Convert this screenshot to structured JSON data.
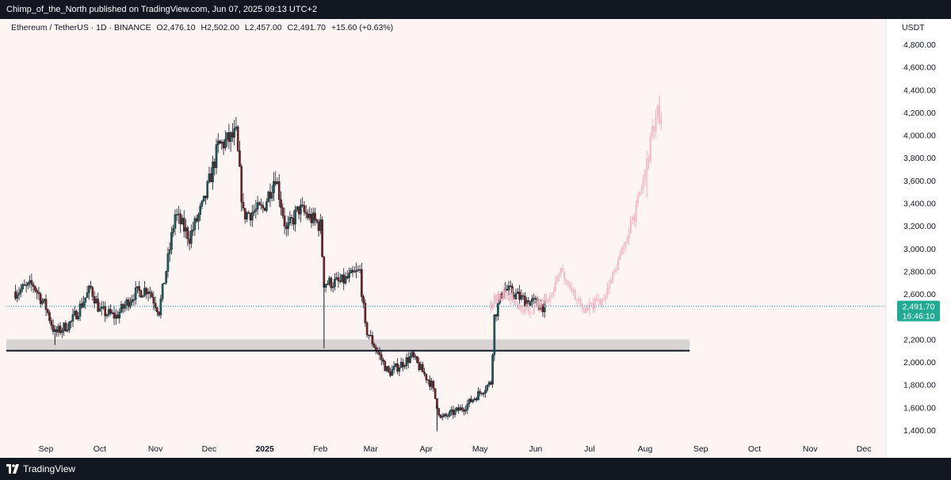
{
  "header": {
    "attribution": "Chimp_of_the_North published on TradingView.com, Jun 07, 2025 09:13 UTC+2"
  },
  "legend": {
    "symbol": "Ethereum / TetherUS · 1D · BINANCE",
    "open": "O2,476.10",
    "high": "H2,502.00",
    "low": "L2,457.00",
    "close": "C2,491.70",
    "change": "+15.60 (+0.63%)"
  },
  "price_axis": {
    "currency": "USDT",
    "ticks": [
      "4,800.00",
      "4,600.00",
      "4,400.00",
      "4,200.00",
      "4,000.00",
      "3,800.00",
      "3,600.00",
      "3,400.00",
      "3,200.00",
      "3,000.00",
      "2,800.00",
      "2,600.00",
      "2,200.00",
      "2,000.00",
      "1,800.00",
      "1,600.00",
      "1,400.00"
    ],
    "last_price": "2,491.70",
    "countdown": "16:46:10"
  },
  "time_axis": {
    "labels": [
      "Sep",
      "Oct",
      "Nov",
      "Dec",
      "2025",
      "Feb",
      "Mar",
      "Apr",
      "May",
      "Jun",
      "Jul",
      "Aug",
      "Sep",
      "Oct",
      "Nov",
      "Dec"
    ]
  },
  "footer": {
    "brand": "TradingView"
  },
  "colors": {
    "up": "#26a69a",
    "down": "#ef5350",
    "candle_body_up": "#1b5e57",
    "candle_body_down": "#7a1e22",
    "projection": "#f2b8c6",
    "support_zone": "#d9d4d4",
    "last_price_badge": "#22ab94"
  },
  "chart_data": {
    "type": "candlestick",
    "title": "Ethereum / TetherUS · 1D · BINANCE",
    "ylim": [
      1350,
      4900
    ],
    "last_price": 2491.7,
    "support_zone": [
      2100,
      2200
    ],
    "support_line": 2100,
    "historical_path": [
      [
        "2024-08-15",
        2620
      ],
      [
        "2024-08-25",
        2680
      ],
      [
        "2024-09-01",
        2480
      ],
      [
        "2024-09-06",
        2250
      ],
      [
        "2024-09-15",
        2350
      ],
      [
        "2024-09-26",
        2650
      ],
      [
        "2024-10-01",
        2450
      ],
      [
        "2024-10-10",
        2400
      ],
      [
        "2024-10-20",
        2600
      ],
      [
        "2024-10-28",
        2650
      ],
      [
        "2024-11-03",
        2450
      ],
      [
        "2024-11-08",
        2900
      ],
      [
        "2024-11-12",
        3300
      ],
      [
        "2024-11-20",
        3100
      ],
      [
        "2024-11-28",
        3400
      ],
      [
        "2024-12-06",
        3900
      ],
      [
        "2024-12-16",
        4000
      ],
      [
        "2024-12-20",
        3300
      ],
      [
        "2024-12-31",
        3350
      ],
      [
        "2025-01-07",
        3650
      ],
      [
        "2025-01-13",
        3150
      ],
      [
        "2025-01-20",
        3350
      ],
      [
        "2025-02-01",
        3200
      ],
      [
        "2025-02-03",
        2700
      ],
      [
        "2025-02-12",
        2700
      ],
      [
        "2025-02-23",
        2800
      ],
      [
        "2025-02-26",
        2300
      ],
      [
        "2025-03-11",
        1900
      ],
      [
        "2025-03-24",
        2050
      ],
      [
        "2025-04-04",
        1800
      ],
      [
        "2025-04-09",
        1500
      ],
      [
        "2025-04-22",
        1600
      ],
      [
        "2025-05-07",
        1820
      ],
      [
        "2025-05-09",
        2400
      ],
      [
        "2025-05-14",
        2650
      ],
      [
        "2025-05-25",
        2550
      ],
      [
        "2025-06-06",
        2491.7
      ]
    ],
    "projection_path": [
      [
        "2025-05-07",
        2520
      ],
      [
        "2025-05-14",
        2600
      ],
      [
        "2025-05-28",
        2450
      ],
      [
        "2025-06-08",
        2550
      ],
      [
        "2025-06-14",
        2800
      ],
      [
        "2025-06-19",
        2700
      ],
      [
        "2025-06-28",
        2450
      ],
      [
        "2025-07-08",
        2550
      ],
      [
        "2025-07-15",
        2800
      ],
      [
        "2025-07-22",
        3100
      ],
      [
        "2025-07-29",
        3450
      ],
      [
        "2025-08-02",
        3750
      ],
      [
        "2025-08-05",
        4000
      ],
      [
        "2025-08-08",
        4200
      ],
      [
        "2025-08-10",
        4150
      ]
    ]
  }
}
